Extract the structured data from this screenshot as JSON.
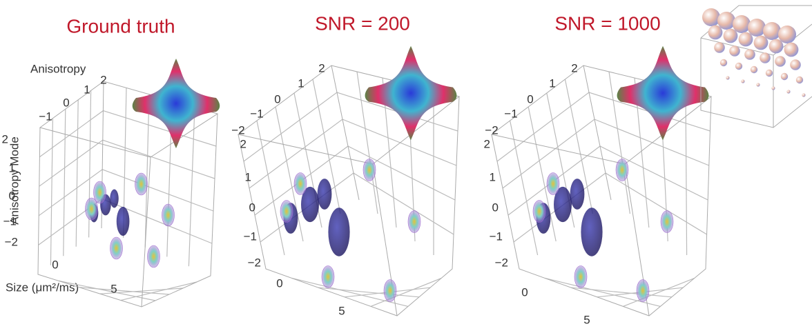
{
  "panels": [
    {
      "title": "Ground truth",
      "axis_labels": {
        "anisotropy": "Anisotropy",
        "mode": "Anisotropy Mode",
        "size": "Size (μm²/ms)"
      },
      "anisotropy_ticks": [
        "−1",
        "0",
        "1",
        "2"
      ],
      "mode_ticks": [
        "2",
        "1",
        "0",
        "−1",
        "−2"
      ],
      "size_ticks": [
        "0",
        "5"
      ]
    },
    {
      "title": "SNR = 200",
      "anisotropy_ticks": [
        "−2",
        "−1",
        "0",
        "1",
        "2"
      ],
      "mode_ticks": [
        "2",
        "1",
        "0",
        "−1",
        "−2"
      ],
      "size_ticks": [
        "0",
        "5"
      ]
    },
    {
      "title": "SNR = 1000",
      "anisotropy_ticks": [
        "−2",
        "−1",
        "0",
        "1",
        "2"
      ],
      "mode_ticks": [
        "2",
        "1",
        "0",
        "−1",
        "−2"
      ],
      "size_ticks": [
        "0",
        "5"
      ]
    }
  ]
}
